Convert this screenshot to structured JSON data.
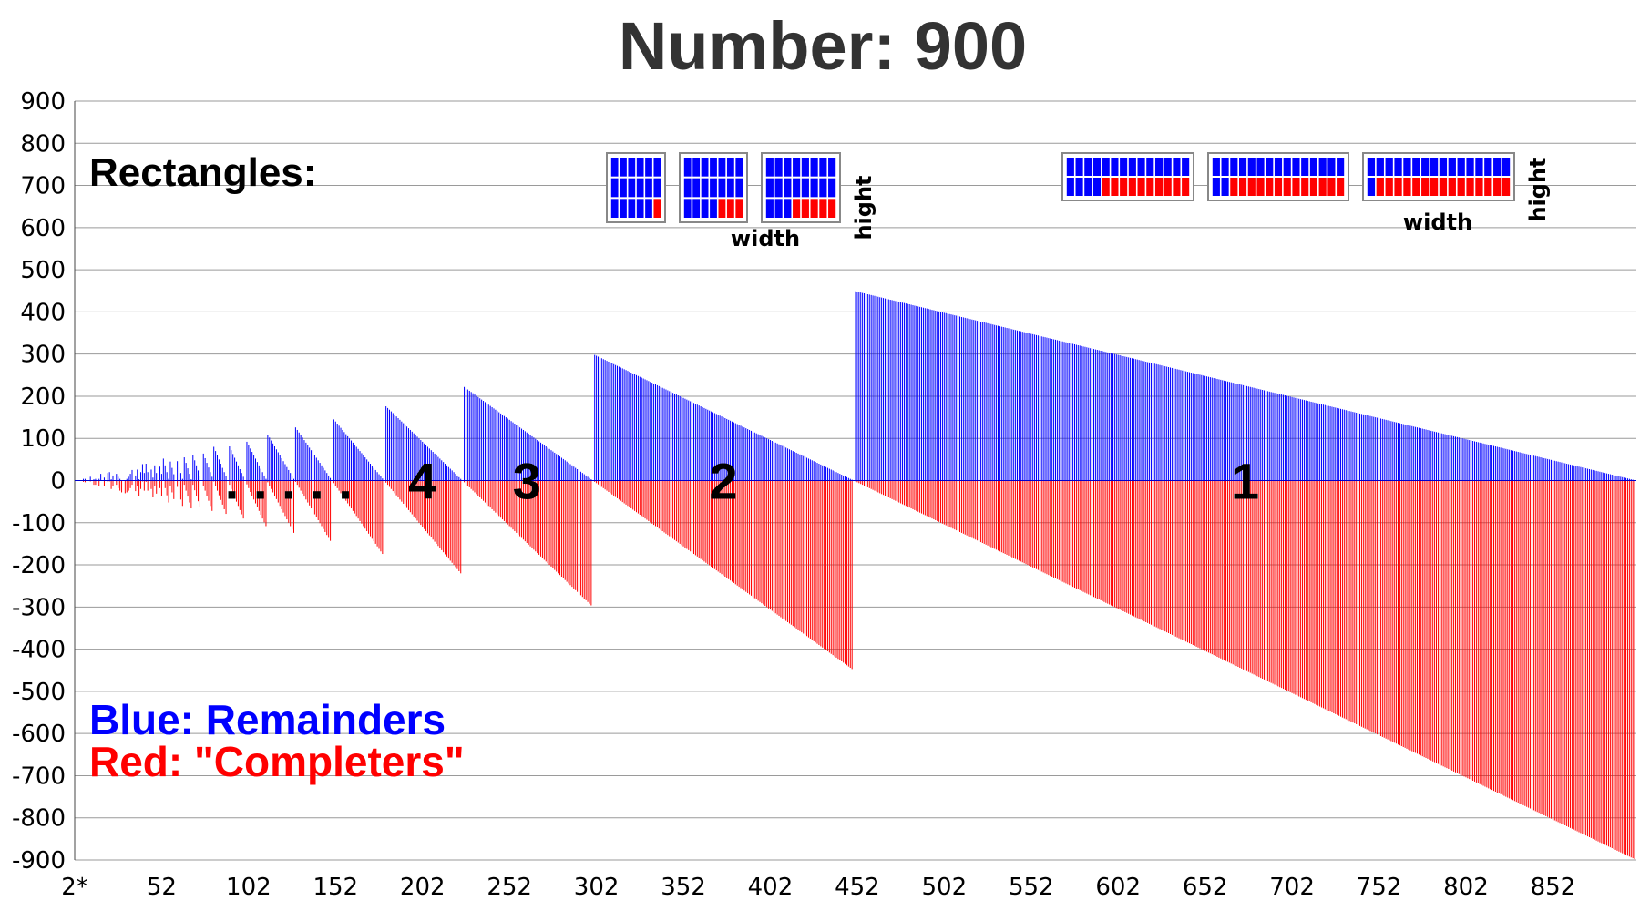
{
  "chart_data": {
    "type": "bar",
    "title": "Number: 900",
    "n": 900,
    "x_first_label": "2*",
    "x_tick_labels": [
      "52",
      "102",
      "152",
      "202",
      "252",
      "302",
      "352",
      "402",
      "452",
      "502",
      "552",
      "602",
      "652",
      "702",
      "752",
      "802",
      "852"
    ],
    "x_tick_values": [
      52,
      102,
      152,
      202,
      252,
      302,
      352,
      402,
      452,
      502,
      552,
      602,
      652,
      702,
      752,
      802,
      852
    ],
    "xlim": [
      2,
      900
    ],
    "ylim": [
      -900,
      900
    ],
    "y_ticks": [
      900,
      800,
      700,
      600,
      500,
      400,
      300,
      200,
      100,
      0,
      -100,
      -200,
      -300,
      -400,
      -500,
      -600,
      -700,
      -800,
      -900
    ],
    "grid": true,
    "series": [
      {
        "name": "Remainders",
        "color": "#0000ff",
        "rule": "900 mod x",
        "x_range": [
          2,
          900
        ]
      },
      {
        "name": "\"Completers\"",
        "color": "#ff0000",
        "rule": "-(x - (900 mod x)) mod x",
        "x_range": [
          2,
          900
        ]
      }
    ],
    "sections": [
      {
        "label": "1",
        "x": 675
      },
      {
        "label": "2",
        "x": 375
      },
      {
        "label": "3",
        "x": 262
      },
      {
        "label": "4",
        "x": 202
      },
      {
        "label": ". . . . .",
        "x": 125
      }
    ]
  },
  "annotations": {
    "rectangles_heading": "Rectangles:",
    "width_label_1": "width",
    "height_label_1": "hight",
    "width_label_2": "width",
    "height_label_2": "hight"
  },
  "legend": {
    "blue_text": "Blue: Remainders",
    "red_text": "Red: \"Completers\"",
    "blue_color": "#0000ff",
    "red_color": "#ff0000"
  }
}
